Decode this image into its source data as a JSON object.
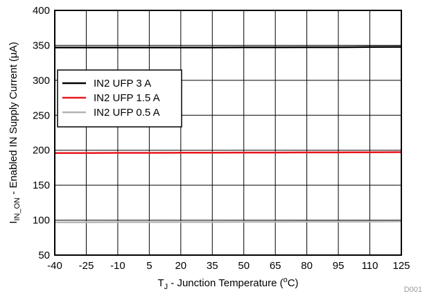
{
  "chart_data": {
    "type": "line",
    "x": [
      -40,
      -25,
      -10,
      5,
      20,
      35,
      50,
      65,
      80,
      95,
      110,
      125
    ],
    "xlim": [
      -40,
      125
    ],
    "ylim": [
      50,
      400
    ],
    "xticks": [
      "-40",
      "-25",
      "-10",
      "5",
      "20",
      "35",
      "50",
      "65",
      "80",
      "95",
      "110",
      "125"
    ],
    "yticks": [
      "50",
      "100",
      "150",
      "200",
      "250",
      "300",
      "350",
      "400"
    ],
    "xlabel": {
      "main": "T",
      "sub": "J",
      "rest": " - Junction Temperature (",
      "sup": "o",
      "end": "C)"
    },
    "ylabel": {
      "main": "I",
      "sub": "IN_ON",
      "rest": " - Enabled IN Supply Current (µA)"
    },
    "grid": true,
    "legend_position": "upper-left",
    "series": [
      {
        "name": "IN2 UFP 3 A",
        "color": "#000000",
        "values": [
          347,
          347,
          347,
          347,
          347,
          347,
          347.2,
          347.2,
          347.4,
          347.4,
          347.6,
          347.8
        ]
      },
      {
        "name": "IN2 UFP 1.5 A",
        "color": "#e8141b",
        "values": [
          196,
          196,
          196.2,
          196.2,
          196.4,
          196.4,
          196.6,
          196.6,
          196.8,
          196.8,
          197,
          197.2
        ]
      },
      {
        "name": "IN2 UFP 0.5 A",
        "color": "#b3b3b3",
        "values": [
          97,
          97,
          97.2,
          97.2,
          97.4,
          97.4,
          97.6,
          97.6,
          97.8,
          97.8,
          98,
          98.2
        ]
      }
    ],
    "figure_id": "D001"
  }
}
